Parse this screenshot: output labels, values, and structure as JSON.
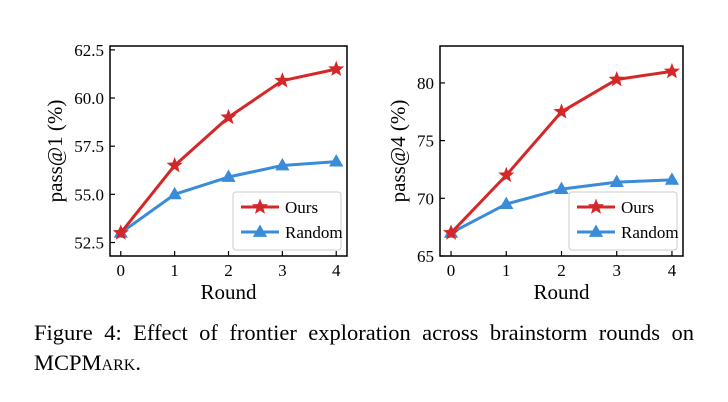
{
  "chart_data": [
    {
      "type": "line",
      "xlabel": "Round",
      "ylabel": "pass@1 (%)",
      "x": [
        0,
        1,
        2,
        3,
        4
      ],
      "xlim": [
        -0.2,
        4.2
      ],
      "ylim": [
        51.8,
        62.7
      ],
      "yticks": [
        52.5,
        55.0,
        57.5,
        60.0,
        62.5
      ],
      "ytick_labels": [
        "52.5",
        "55.0",
        "57.5",
        "60.0",
        "62.5"
      ],
      "grid": false,
      "legend_position": "bottom-right",
      "series": [
        {
          "name": "Ours",
          "color": "#d62728",
          "marker": "star",
          "values": [
            53.0,
            56.5,
            59.0,
            60.9,
            61.5
          ]
        },
        {
          "name": "Random",
          "color": "#3a8bd8",
          "marker": "triangle",
          "values": [
            53.0,
            55.0,
            55.9,
            56.5,
            56.7
          ]
        }
      ]
    },
    {
      "type": "line",
      "xlabel": "Round",
      "ylabel": "pass@4 (%)",
      "x": [
        0,
        1,
        2,
        3,
        4
      ],
      "xlim": [
        -0.2,
        4.2
      ],
      "ylim": [
        65,
        83.2
      ],
      "yticks": [
        65,
        70,
        75,
        80
      ],
      "ytick_labels": [
        "65",
        "70",
        "75",
        "80"
      ],
      "grid": false,
      "legend_position": "bottom-right",
      "series": [
        {
          "name": "Ours",
          "color": "#d62728",
          "marker": "star",
          "values": [
            67.0,
            72.0,
            77.5,
            80.3,
            81.0
          ]
        },
        {
          "name": "Random",
          "color": "#3a8bd8",
          "marker": "triangle",
          "values": [
            67.0,
            69.5,
            70.8,
            71.4,
            71.6
          ]
        }
      ]
    }
  ],
  "caption": {
    "prefix": "Figure 4:  Effect of frontier exploration across brainstorm rounds on MCP",
    "smallcaps": "Mark",
    "suffix": "."
  }
}
